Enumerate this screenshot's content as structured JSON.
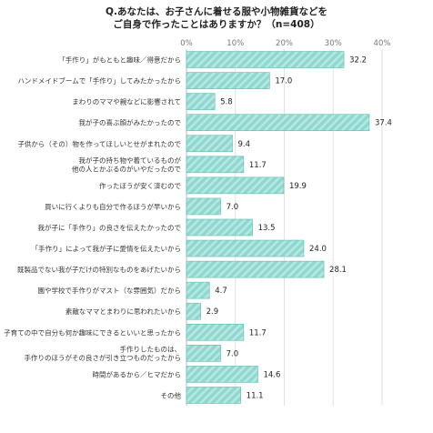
{
  "chart_data": {
    "type": "bar",
    "orientation": "horizontal",
    "title_lines": [
      "Q.あなたは、お子さんに着せる服や小物雑貨などを",
      "ご自身で作ったことはありますか？（n=408）"
    ],
    "xlabel": "",
    "ylabel": "",
    "xlim": [
      0,
      40
    ],
    "ticks": [
      0,
      10,
      20,
      30,
      40
    ],
    "tick_labels": [
      "0%",
      "10%",
      "20%",
      "30%",
      "40%"
    ],
    "grid": true,
    "bar_color": "#8fd8cf",
    "bar_stroke": "#5fbdb1",
    "categories": [
      [
        "「手作り」がもともと趣味／得意だから"
      ],
      [
        "ハンドメイドブームで「手作り」してみたかったから"
      ],
      [
        "まわりのママや親などに影響されて"
      ],
      [
        "我が子の喜ぶ顔がみたかったので"
      ],
      [
        "子供から（その）物を作ってほしいとせがまれたので"
      ],
      [
        "我が子の持ち物や着ているものが",
        "他の人とかぶるのがいやだったので"
      ],
      [
        "作ったほうが安く済むので"
      ],
      [
        "買いに行くよりも自分で作るほうが早いから"
      ],
      [
        "我が子に「手作り」の良さを伝えたかったので"
      ],
      [
        "「手作り」によって我が子に愛情を伝えたいから"
      ],
      [
        "既製品でない我が子だけの特別なものをあげたいから"
      ],
      [
        "園や学校で手作りがマスト（な雰囲気）だから"
      ],
      [
        "素敵なママとまわりに思われたいから"
      ],
      [
        "子育ての中で自分も何か趣味にできるといいと思ったから"
      ],
      [
        "手作りしたものは、",
        "手作りのほうがその良さが引き立つものだったから"
      ],
      [
        "時間があるから／ヒマだから"
      ],
      [
        "その他"
      ]
    ],
    "values": [
      32.2,
      17.0,
      5.8,
      37.4,
      9.4,
      11.7,
      19.9,
      7.0,
      13.5,
      24.0,
      28.1,
      4.7,
      2.9,
      11.7,
      7.0,
      14.6,
      11.1
    ],
    "value_labels": [
      "32.2",
      "17.0",
      "5.8",
      "37.4",
      "9.4",
      "11.7",
      "19.9",
      "7.0",
      "13.5",
      "24.0",
      "28.1",
      "4.7",
      "2.9",
      "11.7",
      "7.0",
      "14.6",
      "11.1"
    ]
  }
}
